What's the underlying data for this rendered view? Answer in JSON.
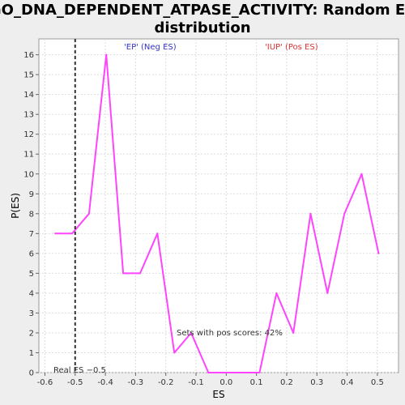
{
  "chart_data": {
    "type": "line",
    "title_line1": "GO_DNA_DEPENDENT_ATPASE_ACTIVITY: Random ES",
    "title_line2": "distribution",
    "xlabel": "ES",
    "ylabel": "P(ES)",
    "xlim": [
      -0.62,
      0.57
    ],
    "ylim": [
      0,
      16.8
    ],
    "x_ticks": [
      -0.6,
      -0.5,
      -0.4,
      -0.3,
      -0.2,
      -0.1,
      0.0,
      0.1,
      0.2,
      0.3,
      0.4,
      0.5
    ],
    "x_tick_labels": [
      "-0.6",
      "-0.5",
      "-0.4",
      "-0.3",
      "-0.2",
      "-0.1",
      "0.0",
      "0.1",
      "0.2",
      "0.3",
      "0.4",
      "0.5"
    ],
    "y_ticks": [
      0,
      1,
      2,
      3,
      4,
      5,
      6,
      7,
      8,
      9,
      10,
      11,
      12,
      13,
      14,
      15,
      16
    ],
    "y_tick_labels": [
      "0",
      "1",
      "2",
      "3",
      "4",
      "5",
      "6",
      "7",
      "8",
      "9",
      "10",
      "11",
      "12",
      "13",
      "14",
      "15",
      "16"
    ],
    "grid": true,
    "series": [
      {
        "color": "#ff44ff",
        "x": [
          -0.566,
          -0.51,
          -0.454,
          -0.397,
          -0.341,
          -0.285,
          -0.228,
          -0.172,
          -0.116,
          -0.059,
          -0.003,
          0.053,
          0.11,
          0.166,
          0.222,
          0.279,
          0.335,
          0.391,
          0.448,
          0.504
        ],
        "values": [
          7,
          7,
          8,
          16,
          5,
          5,
          7,
          1,
          2,
          0,
          0,
          0,
          0,
          4,
          2,
          8,
          4,
          8,
          10,
          6
        ]
      }
    ],
    "real_es": -0.5,
    "annotations": {
      "neg_label": "'EP' (Neg ES)",
      "pos_label": "'IUP' (Pos ES)",
      "pos_scores": "Sets with pos scores: 42%",
      "real_es_label": "Real ES −0.5"
    },
    "colors": {
      "line": "#ff44ff",
      "neg_label": "#3333cc",
      "pos_label": "#dd3333",
      "background": "#eeeeee",
      "plot_background": "#ffffff",
      "grid": "#dddddd"
    }
  }
}
